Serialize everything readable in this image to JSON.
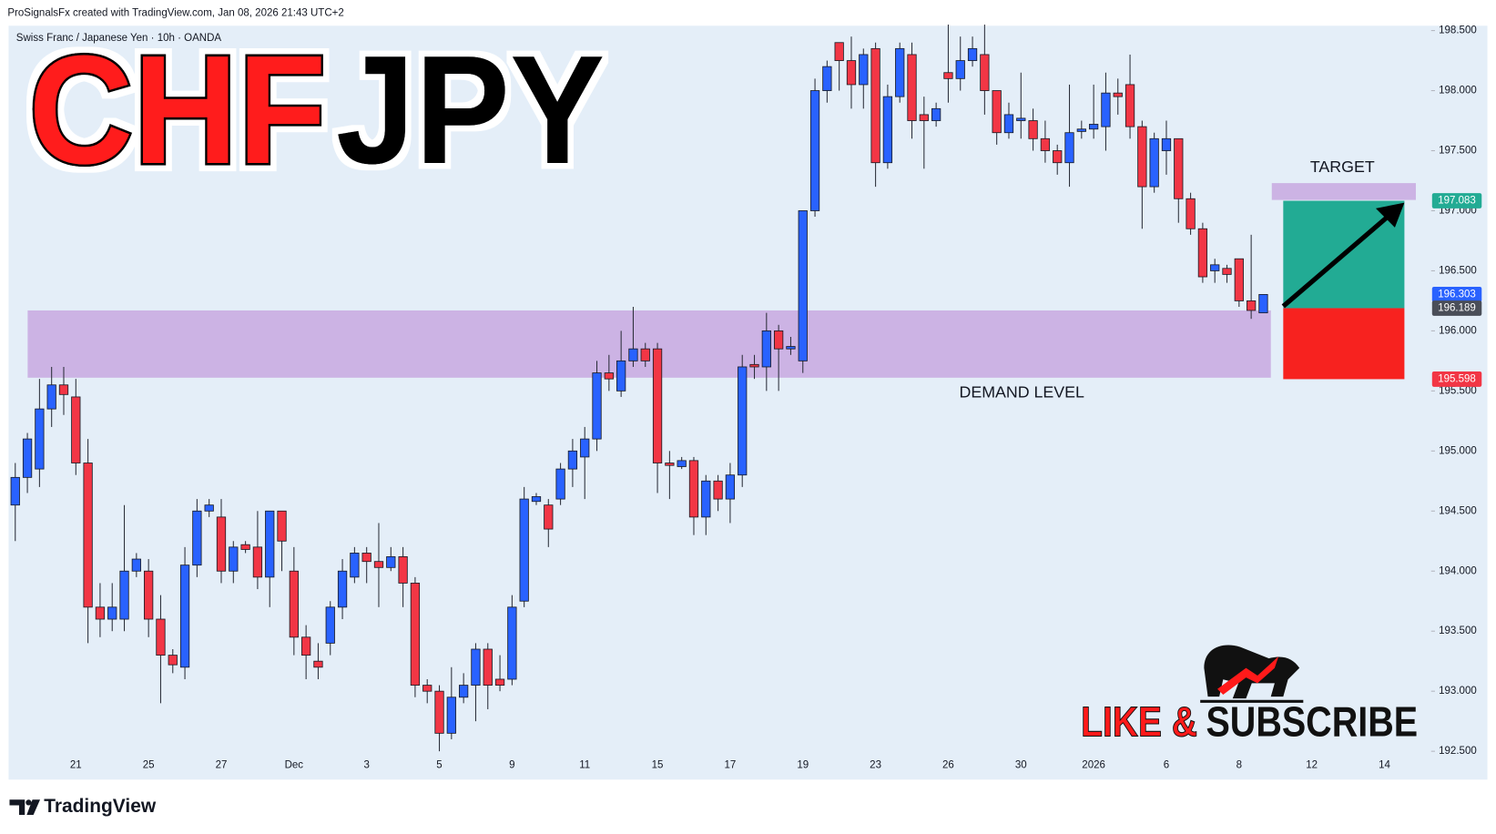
{
  "header": {
    "credit": "ProSignalsFx created with TradingView.com, Jan 08, 2026 21:43 UTC+2"
  },
  "headline": [
    "CHF",
    "JPY"
  ],
  "cta": [
    "LIKE &",
    "SUBSCRIBE"
  ],
  "brand": "TradingView",
  "chart_data": {
    "type": "candlestick",
    "title": "Swiss Franc / Japanese Yen · 10h · OANDA",
    "up_color": "#2962ff",
    "down_color": "#f23645",
    "categories": [
      null,
      null,
      null,
      null,
      null,
      "21",
      null,
      null,
      null,
      null,
      null,
      "25",
      null,
      null,
      null,
      null,
      null,
      "27",
      null,
      null,
      null,
      null,
      null,
      "Dec",
      null,
      null,
      null,
      null,
      null,
      "3",
      null,
      null,
      null,
      null,
      null,
      "5",
      null,
      null,
      null,
      null,
      null,
      "9",
      null,
      null,
      null,
      null,
      null,
      "11",
      null,
      null,
      null,
      null,
      null,
      "15",
      null,
      null,
      null,
      null,
      null,
      "17",
      null,
      null,
      null,
      null,
      null,
      "19",
      null,
      null,
      null,
      null,
      null,
      "23",
      null,
      null,
      null,
      null,
      null,
      "26",
      null,
      null,
      null,
      null,
      null,
      "30",
      null,
      null,
      null,
      null,
      null,
      "2026",
      null,
      null,
      null,
      null,
      null,
      "6",
      null,
      null,
      null,
      null,
      null,
      "8",
      null,
      null,
      null,
      null,
      null,
      "12",
      null,
      null,
      null,
      null,
      null,
      "14"
    ],
    "open": [
      194.55,
      194.78,
      194.85,
      195.35,
      195.55,
      195.45,
      194.9,
      193.7,
      193.6,
      193.6,
      194.0,
      194.0,
      193.6,
      193.3,
      193.2,
      194.05,
      194.5,
      194.45,
      194.0,
      194.22,
      194.2,
      193.95,
      194.5,
      194.0,
      193.45,
      193.25,
      193.4,
      193.7,
      193.95,
      194.15,
      194.08,
      194.03,
      194.12,
      193.9,
      193.05,
      193.0,
      192.65,
      192.95,
      193.05,
      193.35,
      193.1,
      193.1,
      193.75,
      194.58,
      194.55,
      194.6,
      194.85,
      194.95,
      195.1,
      195.65,
      195.5,
      195.75,
      195.85,
      195.85,
      194.9,
      194.87,
      194.92,
      194.45,
      194.75,
      194.6,
      194.8,
      195.72,
      195.7,
      196.0,
      195.85,
      195.75,
      197.0,
      198.0,
      198.4,
      198.25,
      198.05,
      198.35,
      197.4,
      197.95,
      198.3,
      197.8,
      197.75,
      198.15,
      198.1,
      198.25,
      198.3,
      198.0,
      197.65,
      197.75,
      197.75,
      197.6,
      197.5,
      197.4,
      197.66,
      197.68,
      197.7,
      197.98,
      198.05,
      197.7,
      197.2,
      197.5,
      197.6,
      197.1,
      196.85,
      196.5,
      196.52,
      196.6,
      196.25,
      196.15,
      null,
      null,
      null,
      null,
      null,
      null,
      null,
      null,
      null,
      null
    ],
    "high": [
      194.9,
      195.15,
      195.6,
      195.7,
      195.7,
      195.6,
      195.1,
      193.9,
      193.9,
      194.55,
      194.15,
      194.1,
      193.8,
      193.35,
      194.2,
      194.6,
      194.6,
      194.6,
      194.25,
      194.25,
      194.5,
      194.5,
      194.5,
      194.2,
      193.55,
      193.4,
      193.75,
      194.1,
      194.2,
      194.2,
      194.4,
      194.2,
      194.2,
      193.95,
      193.1,
      193.05,
      193.2,
      193.15,
      193.4,
      193.4,
      193.3,
      193.8,
      194.7,
      194.65,
      194.6,
      194.9,
      195.1,
      195.2,
      195.75,
      195.8,
      196.0,
      196.2,
      195.9,
      195.9,
      195.0,
      194.95,
      194.95,
      194.8,
      194.8,
      194.9,
      195.8,
      195.8,
      196.15,
      196.05,
      195.95,
      197.0,
      198.1,
      198.25,
      198.4,
      198.45,
      198.35,
      198.4,
      198.05,
      198.4,
      198.4,
      197.95,
      197.9,
      198.55,
      198.45,
      198.45,
      198.55,
      198.0,
      197.9,
      198.15,
      197.85,
      197.75,
      197.55,
      198.05,
      197.75,
      198.05,
      198.15,
      198.1,
      198.3,
      197.75,
      197.65,
      197.75,
      197.6,
      197.15,
      196.9,
      196.6,
      196.55,
      196.6,
      196.8,
      196.303,
      null,
      null,
      null,
      null,
      null,
      null,
      null,
      null,
      null,
      null
    ],
    "low": [
      194.25,
      194.65,
      194.7,
      195.2,
      195.3,
      194.8,
      193.4,
      193.45,
      193.5,
      193.5,
      193.95,
      193.45,
      192.9,
      193.15,
      193.1,
      193.95,
      194.45,
      193.9,
      193.9,
      194.15,
      193.85,
      193.7,
      194.0,
      193.3,
      193.1,
      193.1,
      193.3,
      193.6,
      193.9,
      193.9,
      193.7,
      194.0,
      193.7,
      192.95,
      192.9,
      192.5,
      192.6,
      192.9,
      192.75,
      192.85,
      193.0,
      193.05,
      193.7,
      194.55,
      194.2,
      194.55,
      194.7,
      194.6,
      195.0,
      195.5,
      195.45,
      195.7,
      195.7,
      194.65,
      194.6,
      194.85,
      194.3,
      194.3,
      194.5,
      194.4,
      194.7,
      195.6,
      195.5,
      195.5,
      195.8,
      195.65,
      196.95,
      197.9,
      198.0,
      197.85,
      197.85,
      197.2,
      197.35,
      197.9,
      197.6,
      197.35,
      197.7,
      197.9,
      198.0,
      198.2,
      197.8,
      197.55,
      197.6,
      197.6,
      197.5,
      197.4,
      197.3,
      197.2,
      197.6,
      197.6,
      197.5,
      197.8,
      197.6,
      196.85,
      197.15,
      197.3,
      196.9,
      196.8,
      196.4,
      196.4,
      196.4,
      196.2,
      196.1,
      196.15,
      null,
      null,
      null,
      null,
      null,
      null,
      null,
      null,
      null,
      null
    ],
    "close": [
      194.78,
      195.1,
      195.35,
      195.55,
      195.47,
      194.9,
      193.7,
      193.6,
      193.7,
      194.0,
      194.1,
      193.6,
      193.3,
      193.22,
      194.05,
      194.5,
      194.55,
      194.0,
      194.2,
      194.18,
      193.95,
      194.5,
      194.25,
      193.45,
      193.3,
      193.2,
      193.7,
      194.0,
      194.15,
      194.08,
      194.03,
      194.12,
      193.9,
      193.05,
      193.0,
      192.65,
      192.95,
      193.05,
      193.35,
      193.05,
      193.05,
      193.7,
      194.6,
      194.62,
      194.35,
      194.85,
      195.0,
      195.1,
      195.65,
      195.6,
      195.75,
      195.85,
      195.75,
      194.9,
      194.88,
      194.92,
      194.45,
      194.75,
      194.6,
      194.8,
      195.7,
      195.7,
      196.0,
      195.85,
      195.87,
      197.0,
      198.0,
      198.2,
      198.25,
      198.05,
      198.3,
      197.4,
      197.95,
      198.35,
      197.75,
      197.75,
      197.85,
      198.1,
      198.25,
      198.35,
      198.0,
      197.65,
      197.8,
      197.77,
      197.6,
      197.5,
      197.4,
      197.65,
      197.68,
      197.72,
      197.98,
      197.95,
      197.7,
      197.2,
      197.6,
      197.6,
      197.1,
      196.85,
      196.45,
      196.55,
      196.47,
      196.25,
      196.17,
      196.303,
      null,
      null,
      null,
      null,
      null,
      null,
      null,
      null,
      null,
      null
    ],
    "ylim": [
      192.28,
      198.54
    ],
    "yticks": [
      {
        "value": 192.5,
        "label": "192.500"
      },
      {
        "value": 193,
        "label": "193.000"
      },
      {
        "value": 193.5,
        "label": "193.500"
      },
      {
        "value": 194,
        "label": "194.000"
      },
      {
        "value": 194.5,
        "label": "194.500"
      },
      {
        "value": 195,
        "label": "195.000"
      },
      {
        "value": 195.5,
        "label": "195.500"
      },
      {
        "value": 196,
        "label": "196.000"
      },
      {
        "value": 196.5,
        "label": "196.500"
      },
      {
        "value": 197,
        "label": "197.000"
      },
      {
        "value": 197.5,
        "label": "197.500"
      },
      {
        "value": 198,
        "label": "198.000"
      },
      {
        "value": 198.5,
        "label": "198.500"
      }
    ],
    "zones": [
      {
        "label": "DEMAND LEVEL",
        "low": 195.61,
        "high": 196.17
      },
      {
        "label": "TARGET",
        "low": 197.09,
        "high": 197.23
      }
    ],
    "position": {
      "target": 197.083,
      "entry": 196.189,
      "stop": 195.598
    }
  }
}
